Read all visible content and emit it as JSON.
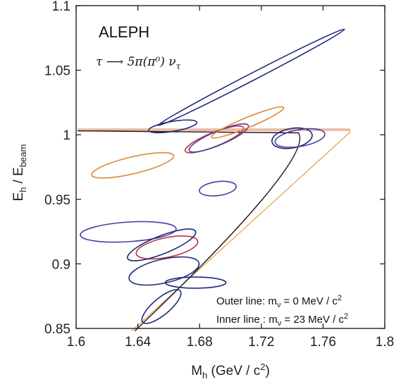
{
  "chart_data": {
    "type": "scatter",
    "xlabel_main": "M",
    "xlabel_sub": "h",
    "xlabel_unit_pre": " (GeV / c",
    "xlabel_unit_sup": "2",
    "xlabel_unit_post": ")",
    "ylabel_main": "E",
    "ylabel_sub1": "h",
    "ylabel_mid": " / E",
    "ylabel_sub2": "beam",
    "xlim": [
      1.6,
      1.8
    ],
    "ylim": [
      0.85,
      1.1
    ],
    "xticks": [
      "1.6",
      "1.64",
      "1.68",
      "1.72",
      "1.76",
      "1.8"
    ],
    "yticks": [
      "0.85",
      "0.9",
      "0.95",
      "1",
      "1.05",
      "1.1"
    ],
    "annotations": {
      "experiment": "ALEPH",
      "decay": "τ ⟶ 5π(π⁰) ν",
      "decay_sub": "τ",
      "legend_outer_pre": "Outer line: m",
      "legend_outer_sub": "ν",
      "legend_outer_post": " = 0 MeV / c",
      "legend_outer_sup": "2",
      "legend_inner_pre": "Inner line : m",
      "legend_inner_sub": "ν",
      "legend_inner_post": " = 23 MeV / c",
      "legend_inner_sup": "2"
    },
    "colors": {
      "outer_line": "#e8a25a",
      "inner_line": "#1a1a1a",
      "top_band": "#e07b88",
      "ellipse_orange": "#d9893a",
      "ellipse_red": "#c03040",
      "ellipse_navy": "#1e2a7a",
      "ellipse_purple": "#4a3fa0"
    },
    "kinematic_boundary": {
      "top_left": [
        1.601,
        1.0045
      ],
      "top_right": [
        1.777,
        1.0045
      ],
      "tip": [
        1.7775,
        1.002
      ],
      "outer_bottom": [
        1.636,
        0.848
      ],
      "inner_top_left": [
        1.601,
        1.003
      ],
      "inner_top_right": [
        1.744,
        1.0015
      ],
      "inner_bottom": [
        1.638,
        0.848
      ]
    },
    "ellipses": [
      {
        "cx": 1.7135,
        "cy": 1.0445,
        "rx": 0.068,
        "ry": 0.0028,
        "angle": 27.3,
        "color": "ellipse_navy"
      },
      {
        "cx": 1.6626,
        "cy": 1.0065,
        "rx": 0.0158,
        "ry": 0.0039,
        "angle": 9.5,
        "color": "ellipse_navy"
      },
      {
        "cx": 1.6366,
        "cy": 0.9763,
        "rx": 0.0273,
        "ry": 0.0065,
        "angle": 13.3,
        "color": "ellipse_orange"
      },
      {
        "cx": 1.6896,
        "cy": 0.9964,
        "rx": 0.0203,
        "ry": 0.0054,
        "angle": 21.9,
        "color": "ellipse_red"
      },
      {
        "cx": 1.6924,
        "cy": 0.9975,
        "rx": 0.0208,
        "ry": 0.0054,
        "angle": 22.9,
        "color": "ellipse_purple"
      },
      {
        "cx": 1.7111,
        "cy": 1.0095,
        "rx": 0.0253,
        "ry": 0.0039,
        "angle": 22.4,
        "color": "ellipse_orange"
      },
      {
        "cx": 1.6918,
        "cy": 0.9583,
        "rx": 0.012,
        "ry": 0.0054,
        "angle": 7.3,
        "color": "ellipse_purple"
      },
      {
        "cx": 1.7399,
        "cy": 0.9973,
        "rx": 0.0132,
        "ry": 0.0076,
        "angle": 10.4,
        "color": "ellipse_navy"
      },
      {
        "cx": 1.745,
        "cy": 0.9975,
        "rx": 0.0163,
        "ry": 0.0065,
        "angle": 9.8,
        "color": "ellipse_purple"
      },
      {
        "cx": 1.6338,
        "cy": 0.9248,
        "rx": 0.0311,
        "ry": 0.0076,
        "angle": 3.7,
        "color": "ellipse_purple"
      },
      {
        "cx": 1.6589,
        "cy": 0.9127,
        "rx": 0.0203,
        "ry": 0.0076,
        "angle": 11.6,
        "color": "ellipse_red"
      },
      {
        "cx": 1.6554,
        "cy": 0.9147,
        "rx": 0.0237,
        "ry": 0.007,
        "angle": 21.6,
        "color": "ellipse_navy"
      },
      {
        "cx": 1.657,
        "cy": 0.8945,
        "rx": 0.0232,
        "ry": 0.0092,
        "angle": 12.8,
        "color": "ellipse_navy"
      },
      {
        "cx": 1.6774,
        "cy": 0.8855,
        "rx": 0.0197,
        "ry": 0.0043,
        "angle": 0,
        "color": "ellipse_navy"
      },
      {
        "cx": 1.6553,
        "cy": 0.867,
        "rx": 0.0158,
        "ry": 0.0065,
        "angle": 39.8,
        "color": "ellipse_navy"
      }
    ]
  }
}
